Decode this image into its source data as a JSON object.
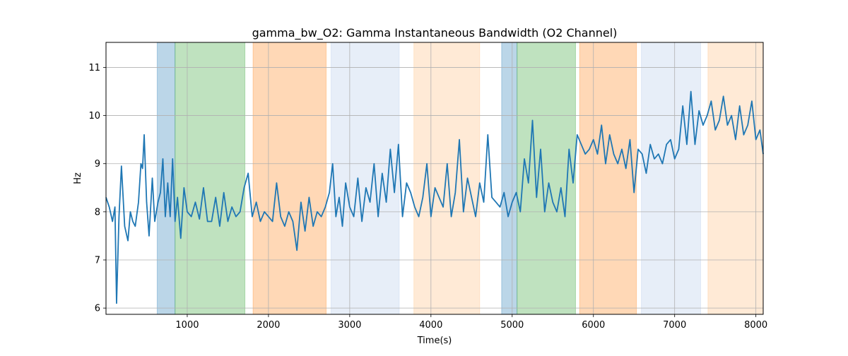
{
  "chart_data": {
    "type": "line",
    "title": "gamma_bw_O2: Gamma Instantaneous Bandwidth (O2 Channel)",
    "xlabel": "Time(s)",
    "ylabel": "Hz",
    "xlim": [
      0,
      8090
    ],
    "ylim": [
      5.87,
      11.52
    ],
    "xticks": [
      1000,
      2000,
      3000,
      4000,
      5000,
      6000,
      7000,
      8000
    ],
    "yticks": [
      6,
      7,
      8,
      9,
      10,
      11
    ],
    "grid": true,
    "series_color": "#1f77b4",
    "shaded_regions": [
      {
        "start": 630,
        "end": 850,
        "color": "#1f77b4",
        "alpha": 0.3
      },
      {
        "start": 850,
        "end": 1710,
        "color": "#2ca02c",
        "alpha": 0.3
      },
      {
        "start": 1810,
        "end": 2710,
        "color": "#ff7f0e",
        "alpha": 0.3
      },
      {
        "start": 2770,
        "end": 3610,
        "color": "#aec7e8",
        "alpha": 0.3
      },
      {
        "start": 3790,
        "end": 4600,
        "color": "#ffbb78",
        "alpha": 0.3
      },
      {
        "start": 4870,
        "end": 5060,
        "color": "#1f77b4",
        "alpha": 0.3
      },
      {
        "start": 5060,
        "end": 5780,
        "color": "#2ca02c",
        "alpha": 0.3
      },
      {
        "start": 5830,
        "end": 6530,
        "color": "#ff7f0e",
        "alpha": 0.3
      },
      {
        "start": 6590,
        "end": 7320,
        "color": "#aec7e8",
        "alpha": 0.3
      },
      {
        "start": 7410,
        "end": 8090,
        "color": "#ffbb78",
        "alpha": 0.3
      }
    ],
    "series": [
      {
        "x": [
          0,
          40,
          80,
          110,
          130,
          160,
          190,
          230,
          270,
          300,
          330,
          360,
          400,
          430,
          450,
          470,
          500,
          530,
          570,
          600,
          640,
          670,
          700,
          730,
          760,
          790,
          820,
          850,
          880,
          920,
          960,
          1000,
          1050,
          1100,
          1150,
          1200,
          1250,
          1300,
          1350,
          1400,
          1450,
          1500,
          1550,
          1600,
          1650,
          1700,
          1750,
          1800,
          1850,
          1900,
          1950,
          2000,
          2050,
          2100,
          2150,
          2200,
          2250,
          2300,
          2350,
          2400,
          2450,
          2500,
          2550,
          2600,
          2650,
          2700,
          2750,
          2790,
          2830,
          2870,
          2910,
          2950,
          3000,
          3050,
          3100,
          3150,
          3200,
          3250,
          3300,
          3350,
          3400,
          3450,
          3500,
          3550,
          3600,
          3650,
          3700,
          3750,
          3800,
          3850,
          3900,
          3950,
          4000,
          4050,
          4100,
          4150,
          4200,
          4250,
          4300,
          4350,
          4400,
          4450,
          4500,
          4550,
          4600,
          4650,
          4700,
          4750,
          4800,
          4850,
          4900,
          4950,
          5000,
          5050,
          5100,
          5150,
          5200,
          5250,
          5300,
          5350,
          5400,
          5450,
          5500,
          5550,
          5600,
          5650,
          5700,
          5750,
          5800,
          5850,
          5900,
          5950,
          6000,
          6050,
          6100,
          6150,
          6200,
          6250,
          6300,
          6350,
          6400,
          6450,
          6500,
          6550,
          6600,
          6650,
          6700,
          6750,
          6800,
          6850,
          6900,
          6950,
          7000,
          7050,
          7100,
          7150,
          7200,
          7250,
          7300,
          7350,
          7400,
          7450,
          7500,
          7550,
          7600,
          7650,
          7700,
          7750,
          7800,
          7850,
          7900,
          7950,
          8000,
          8050,
          8090
        ],
        "y": [
          8.3,
          8.1,
          7.8,
          8.1,
          6.1,
          7.9,
          8.95,
          7.7,
          7.4,
          8.0,
          7.8,
          7.7,
          8.2,
          9.0,
          8.9,
          9.6,
          8.2,
          7.5,
          8.7,
          7.8,
          8.2,
          8.4,
          9.1,
          7.9,
          8.6,
          7.9,
          9.1,
          7.8,
          8.3,
          7.45,
          8.5,
          8.0,
          7.9,
          8.2,
          7.85,
          8.5,
          7.8,
          7.8,
          8.3,
          7.7,
          8.4,
          7.8,
          8.1,
          7.9,
          8.0,
          8.5,
          8.8,
          7.9,
          8.2,
          7.8,
          8.0,
          7.9,
          7.8,
          8.6,
          7.9,
          7.7,
          8.0,
          7.8,
          7.2,
          8.2,
          7.6,
          8.3,
          7.7,
          8.0,
          7.9,
          8.1,
          8.4,
          9.0,
          7.9,
          8.3,
          7.7,
          8.6,
          8.1,
          7.9,
          8.7,
          7.8,
          8.5,
          8.2,
          9.0,
          7.9,
          8.8,
          8.2,
          9.3,
          8.4,
          9.4,
          7.9,
          8.6,
          8.4,
          8.1,
          7.9,
          8.3,
          9.0,
          7.9,
          8.5,
          8.3,
          8.1,
          9.0,
          7.9,
          8.4,
          9.5,
          8.0,
          8.7,
          8.3,
          7.9,
          8.6,
          8.2,
          9.6,
          8.3,
          8.2,
          8.1,
          8.4,
          7.9,
          8.2,
          8.4,
          8.0,
          9.1,
          8.6,
          9.9,
          8.3,
          9.3,
          8.0,
          8.6,
          8.2,
          8.0,
          8.5,
          7.9,
          9.3,
          8.6,
          9.6,
          9.4,
          9.2,
          9.3,
          9.5,
          9.2,
          9.8,
          9.0,
          9.6,
          9.2,
          9.0,
          9.3,
          8.9,
          9.5,
          8.4,
          9.3,
          9.2,
          8.8,
          9.4,
          9.1,
          9.2,
          9.0,
          9.4,
          9.5,
          9.1,
          9.3,
          10.2,
          9.4,
          10.5,
          9.4,
          10.1,
          9.8,
          10.0,
          10.3,
          9.7,
          9.9,
          10.4,
          9.8,
          10.0,
          9.5,
          10.2,
          9.6,
          9.8,
          10.3,
          9.5,
          9.7,
          9.2
        ]
      }
    ]
  }
}
